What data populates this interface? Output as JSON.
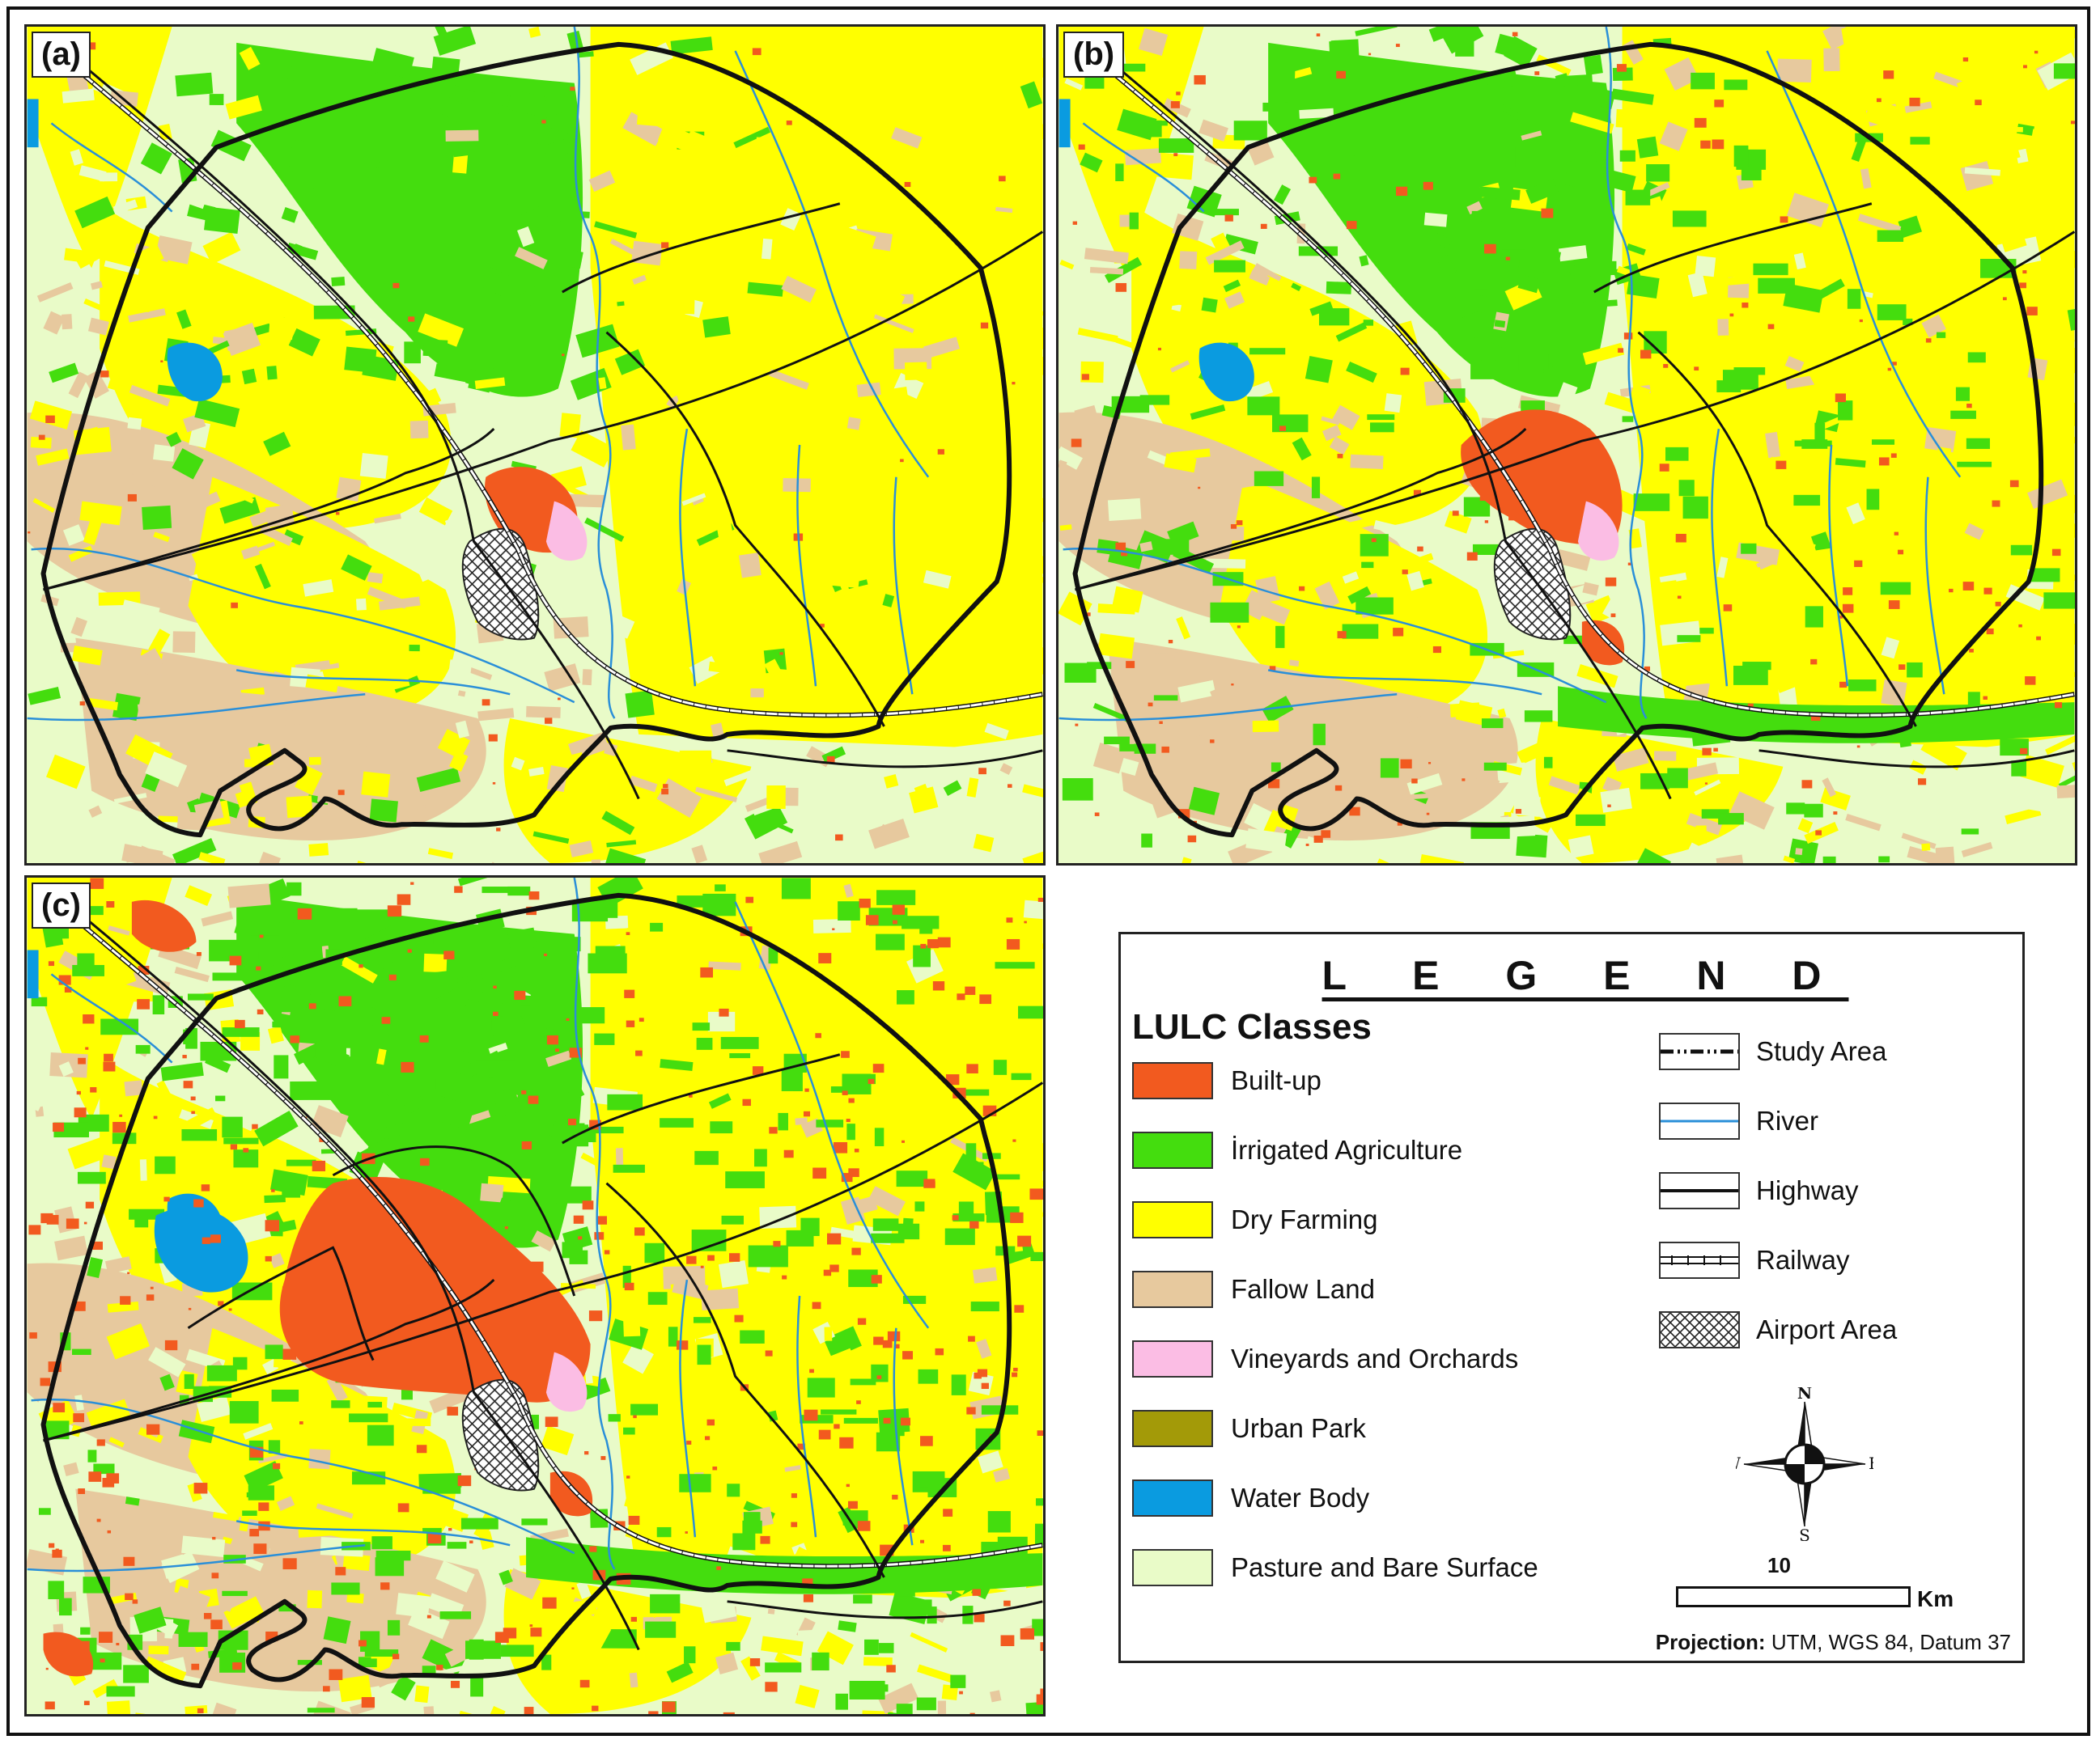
{
  "panels": [
    {
      "id": "a",
      "label": "(a)",
      "builtup_level": 1
    },
    {
      "id": "b",
      "label": "(b)",
      "builtup_level": 2
    },
    {
      "id": "c",
      "label": "(c)",
      "builtup_level": 3
    }
  ],
  "legend": {
    "title": "L E G E N D",
    "classes_title": "LULC Classes",
    "classes": [
      {
        "label": "Built-up",
        "color": "#f25a1f"
      },
      {
        "label": "İrrigated Agriculture",
        "color": "#44dd0e"
      },
      {
        "label": "Dry Farming",
        "color": "#ffff00"
      },
      {
        "label": "Fallow Land",
        "color": "#e7c99e"
      },
      {
        "label": "Vineyards and Orchards",
        "color": "#fbbde4"
      },
      {
        "label": "Urban Park",
        "color": "#a39a08"
      },
      {
        "label": "Water Body",
        "color": "#0a9be0"
      },
      {
        "label": "Pasture and Bare Surface",
        "color": "#e9fbc8"
      }
    ],
    "symbols": [
      {
        "label": "Study Area",
        "icon": "dash-dot-line"
      },
      {
        "label": "River",
        "icon": "blue-line"
      },
      {
        "label": "Highway",
        "icon": "black-line"
      },
      {
        "label": "Railway",
        "icon": "railway-line"
      },
      {
        "label": "Airport Area",
        "icon": "crosshatch"
      }
    ],
    "compass": {
      "n": "N",
      "s": "S",
      "e": "E",
      "w": "W"
    },
    "scale": {
      "value": "10",
      "unit": "Km"
    },
    "projection": {
      "label": "Projection:",
      "value": "UTM, WGS 84, Datum 37"
    }
  }
}
